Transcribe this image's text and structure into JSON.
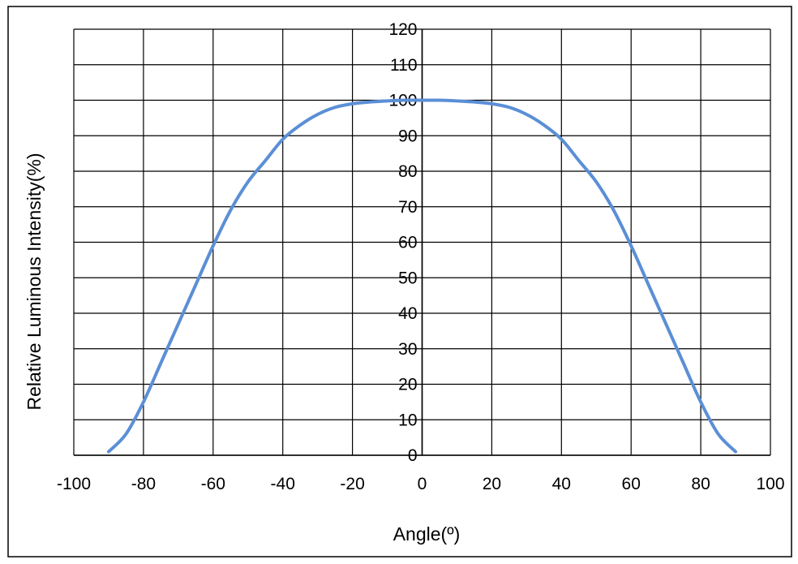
{
  "chart_data": {
    "type": "line",
    "title": "",
    "xlabel": "Angle(º)",
    "ylabel": "Relative Luminous Intensity(%)",
    "xlim": [
      -100,
      100
    ],
    "ylim": [
      0,
      120
    ],
    "x_ticks": [
      -100,
      -80,
      -60,
      -40,
      -20,
      0,
      20,
      40,
      60,
      80,
      100
    ],
    "y_ticks": [
      0,
      10,
      20,
      30,
      40,
      50,
      60,
      70,
      80,
      90,
      100,
      110,
      120
    ],
    "grid": true,
    "legend": "none",
    "series": [
      {
        "color": "#5b8fd6",
        "x": [
          -90,
          -85,
          -80,
          -75,
          -70,
          -65,
          -60,
          -55,
          -50,
          -45,
          -40,
          -35,
          -30,
          -25,
          -20,
          -15,
          -10,
          -5,
          0,
          5,
          10,
          15,
          20,
          25,
          30,
          35,
          40,
          45,
          50,
          55,
          60,
          65,
          70,
          75,
          80,
          85,
          90
        ],
        "y": [
          1,
          6,
          15,
          26,
          37,
          48,
          59,
          69,
          77,
          83,
          89,
          93,
          96,
          98,
          99,
          99.5,
          99.8,
          100,
          100,
          100,
          99.8,
          99.5,
          99,
          98,
          96,
          93,
          89,
          83,
          77,
          69,
          59,
          48,
          37,
          26,
          15,
          6,
          1
        ]
      }
    ]
  }
}
